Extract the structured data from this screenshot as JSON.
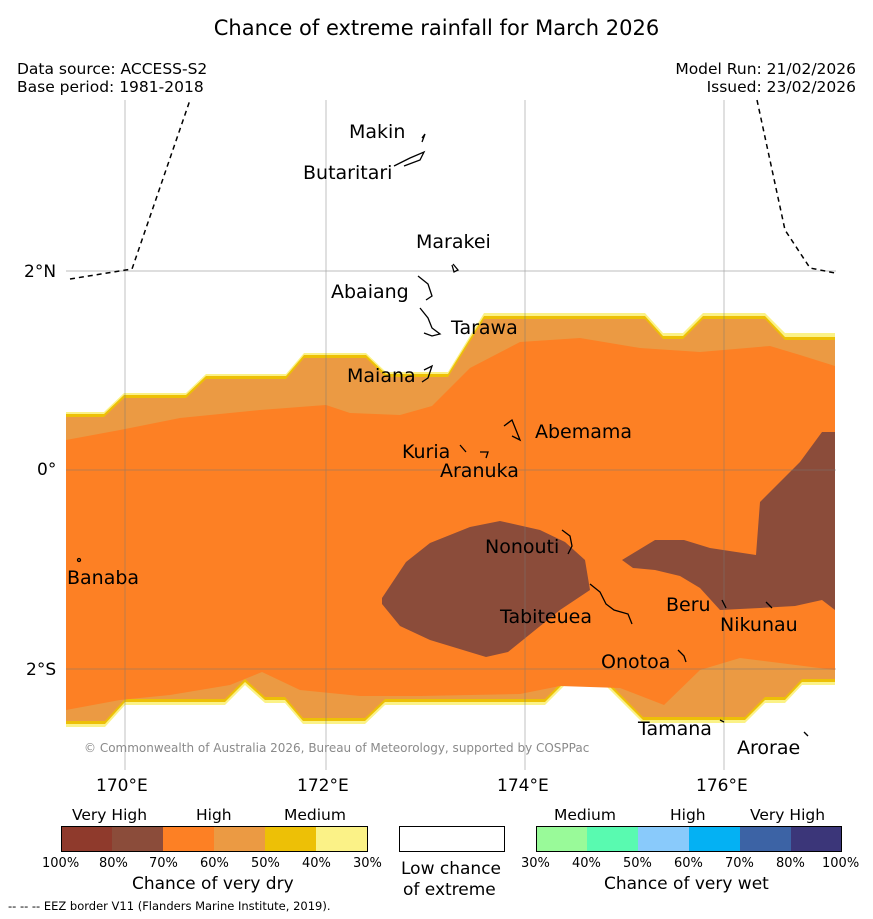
{
  "title": "Chance of extreme rainfall for March 2026",
  "header": {
    "data_source": "Data source: ACCESS-S2",
    "base_period": "Base period: 1981-2018",
    "model_run": "Model Run: 21/02/2026",
    "issued": "Issued: 23/02/2026"
  },
  "map": {
    "lat_labels": [
      "2°N",
      "0°",
      "2°S"
    ],
    "lon_labels": [
      "170°E",
      "172°E",
      "174°E",
      "176°E"
    ],
    "islands": [
      "Makin",
      "Butaritari",
      "Marakei",
      "Abaiang",
      "Tarawa",
      "Maiana",
      "Abemama",
      "Kuria",
      "Aranuka",
      "Nonouti",
      "Banaba",
      "Beru",
      "Tabiteuea",
      "Nikunau",
      "Onotoa",
      "Tamana",
      "Arorae"
    ],
    "credit": "© Commonwealth of Australia 2026, Bureau of Meteorology, supported by COSPPac"
  },
  "legend": {
    "dry": {
      "headers": [
        "Very High",
        "High",
        "Medium"
      ],
      "colors": [
        "#8f3a2c",
        "#8b4c3a",
        "#fd8024",
        "#eb9a43",
        "#edc006",
        "#fbf287"
      ],
      "ticks": [
        "100%",
        "80%",
        "70%",
        "60%",
        "50%",
        "40%",
        "30%"
      ],
      "caption": "Chance of very dry"
    },
    "low": {
      "color": "#ffffff",
      "caption_line1": "Low chance",
      "caption_line2": "of extreme"
    },
    "wet": {
      "headers": [
        "Medium",
        "High",
        "Very High"
      ],
      "colors": [
        "#99fa99",
        "#59fab0",
        "#89cafb",
        "#04b1f3",
        "#3c63a5",
        "#3b3679"
      ],
      "ticks": [
        "30%",
        "40%",
        "50%",
        "60%",
        "70%",
        "80%",
        "100%"
      ],
      "caption": "Chance of very wet"
    }
  },
  "footnote": "--  --  -- EEZ border V11 (Flanders Marine Institute, 2019)."
}
